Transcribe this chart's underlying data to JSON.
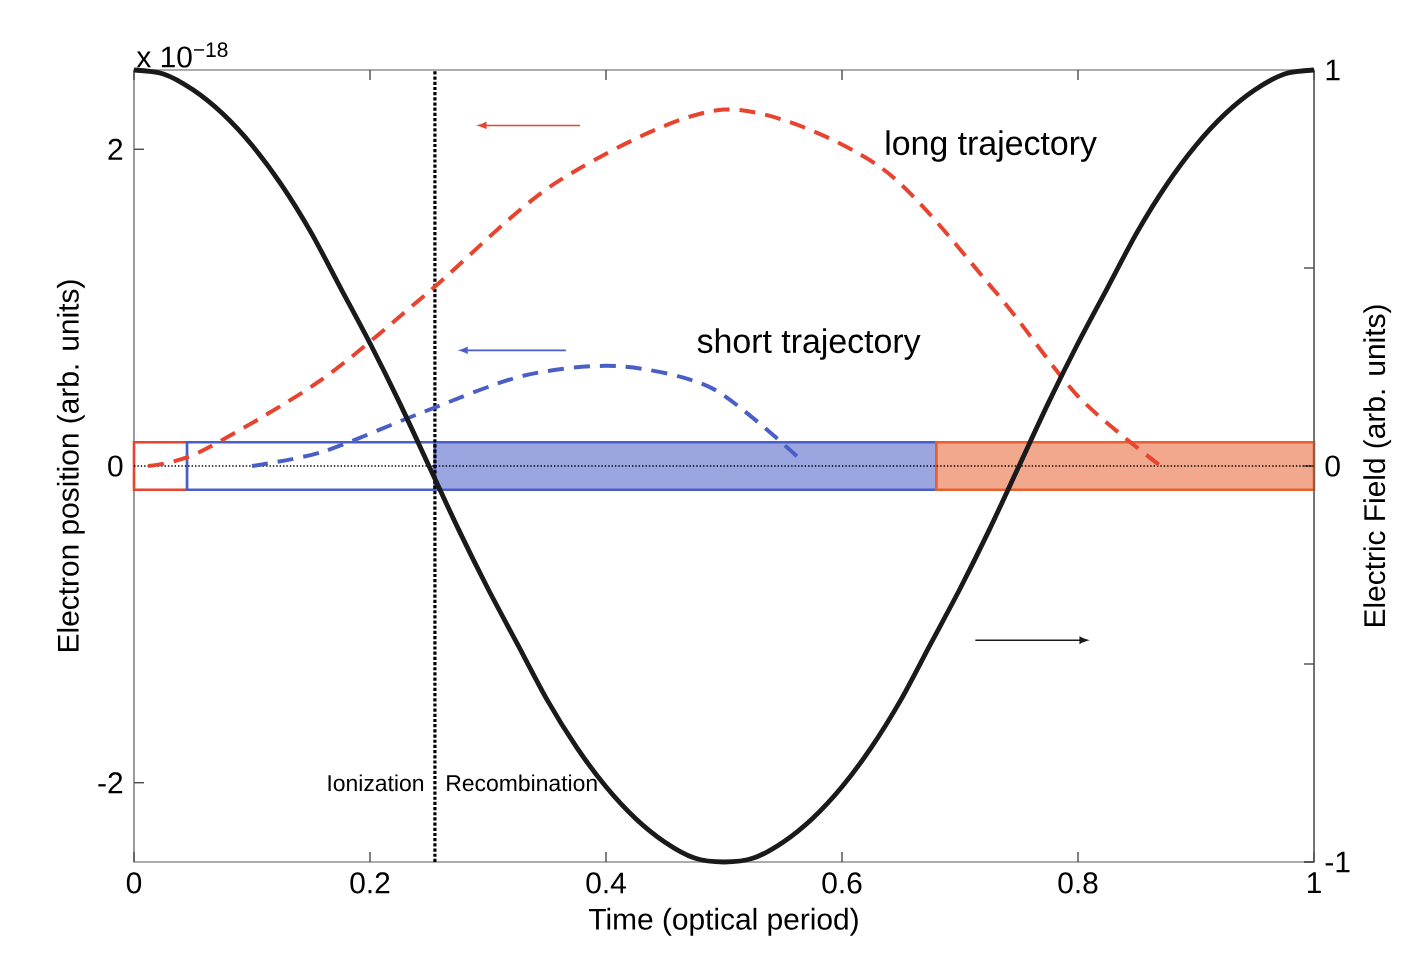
{
  "chart_data": {
    "type": "line",
    "xlabel": "Time (optical period)",
    "ylabel": "Electron position (arb. units)",
    "y2label": "Electric Field (arb. units)",
    "xlim": [
      0,
      1
    ],
    "xticks": [
      0,
      0.2,
      0.4,
      0.6,
      0.8,
      1
    ],
    "ylim": [
      -2.5,
      2.5
    ],
    "yticks": [
      -2,
      0,
      2
    ],
    "y2lim": [
      -1,
      1
    ],
    "y2ticks": [
      -1,
      {
        "value": -0.5,
        "label": null
      },
      0,
      {
        "value": 0.5,
        "label": null
      },
      1
    ],
    "grid": false,
    "marker": "none",
    "series": [
      {
        "name": "long trajectory",
        "color": "#e8432e",
        "line_style": "dashed",
        "x": [
          0.012,
          0.056,
          0.158,
          0.25,
          0.36,
          0.5,
          0.63,
          0.73,
          0.8,
          0.87
        ],
        "values": [
          0,
          0.09,
          0.54,
          1.1,
          1.8,
          2.25,
          1.9,
          1.1,
          0.44,
          0
        ]
      },
      {
        "name": "short trajectory",
        "color": "#4a5ec8",
        "line_style": "dashed",
        "x": [
          0.1,
          0.16,
          0.245,
          0.33,
          0.41,
          0.49,
          0.565
        ],
        "values": [
          0,
          0.09,
          0.34,
          0.57,
          0.63,
          0.49,
          0.04
        ]
      },
      {
        "color": "#1a1a1a",
        "line_style": "solid",
        "axis": "y2",
        "x": [
          0,
          0.025,
          0.05,
          0.075,
          0.1,
          0.125,
          0.15,
          0.175,
          0.2,
          0.225,
          0.25,
          0.275,
          0.3,
          0.325,
          0.35,
          0.375,
          0.4,
          0.425,
          0.45,
          0.475,
          0.5,
          0.525,
          0.55,
          0.575,
          0.6,
          0.625,
          0.65,
          0.675,
          0.7,
          0.725,
          0.75,
          0.775,
          0.8,
          0.825,
          0.85,
          0.875,
          0.9,
          0.925,
          0.95,
          0.975,
          1
        ],
        "values": [
          1,
          0.99,
          0.95,
          0.89,
          0.81,
          0.71,
          0.59,
          0.45,
          0.31,
          0.16,
          0,
          -0.16,
          -0.31,
          -0.45,
          -0.59,
          -0.71,
          -0.81,
          -0.89,
          -0.95,
          -0.99,
          -1,
          -0.99,
          -0.95,
          -0.89,
          -0.81,
          -0.71,
          -0.59,
          -0.45,
          -0.31,
          -0.16,
          0,
          0.16,
          0.31,
          0.45,
          0.59,
          0.71,
          0.81,
          0.89,
          0.95,
          0.99,
          1
        ]
      }
    ],
    "ref_lines": [
      {
        "axis": "x",
        "value": 0.255,
        "line_style": "dotted",
        "color": "#000000"
      },
      {
        "axis": "y",
        "value": 0,
        "line_style": "dotted",
        "color": "#000000"
      }
    ],
    "bands": [
      {
        "axis": "x",
        "from": 0,
        "to": 0.045,
        "color": "#e8432e"
      },
      {
        "axis": "x",
        "from": 0.045,
        "to": 0.255,
        "color": "#4a5ec8"
      },
      {
        "axis": "x",
        "from": 0.255,
        "to": 0.68,
        "color": "#4a5ec8"
      },
      {
        "axis": "x",
        "from": 0.68,
        "to": 1,
        "color": "#e8602e"
      }
    ],
    "annotations": [
      "x 10$^{−18}$",
      "Ionization",
      "Recombination"
    ]
  }
}
